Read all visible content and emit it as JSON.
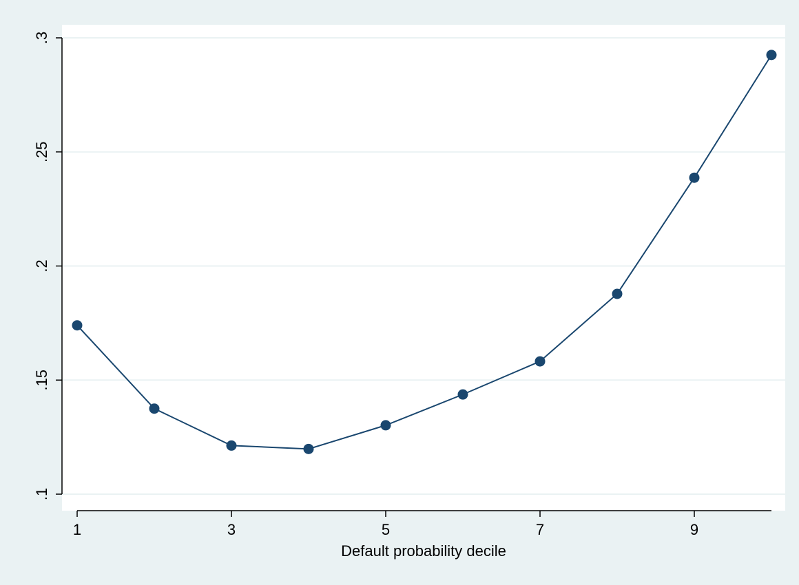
{
  "chart_data": {
    "type": "line",
    "title": "",
    "xlabel": "Default probability decile",
    "ylabel": "",
    "x": [
      1,
      2,
      3,
      4,
      5,
      6,
      7,
      8,
      9,
      10
    ],
    "series": [
      {
        "values": [
          0.174,
          0.1375,
          0.1213,
          0.1198,
          0.1302,
          0.1437,
          0.1582,
          0.1878,
          0.2387,
          0.2925
        ]
      }
    ],
    "xlim": [
      1,
      10
    ],
    "ylim": [
      0.1,
      0.3
    ],
    "x_ticks": [
      1,
      3,
      5,
      7,
      9
    ],
    "x_tick_labels": [
      "1",
      "3",
      "5",
      "7",
      "9"
    ],
    "y_ticks": [
      0.1,
      0.15,
      0.2,
      0.25,
      0.3
    ],
    "y_tick_labels": [
      ".1",
      ".15",
      ".2",
      ".25",
      ".3"
    ],
    "grid": "horizontal",
    "colors": {
      "outer_background": "#eaf2f3",
      "plot_background": "#ffffff",
      "gridline": "#eaf2f3",
      "series": "#1a476f",
      "axis": "#000000"
    }
  }
}
